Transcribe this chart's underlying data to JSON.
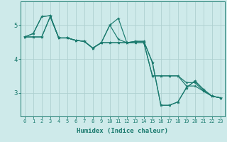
{
  "xlabel": "Humidex (Indice chaleur)",
  "background_color": "#ceeaea",
  "line_color": "#1a7a6e",
  "grid_color": "#aed0d0",
  "x": [
    0,
    1,
    2,
    3,
    4,
    5,
    6,
    7,
    8,
    9,
    10,
    11,
    12,
    13,
    14,
    15,
    16,
    17,
    18,
    19,
    20,
    21,
    22,
    23
  ],
  "series": [
    [
      4.65,
      4.75,
      5.25,
      5.28,
      4.62,
      4.62,
      4.55,
      4.52,
      4.32,
      4.48,
      5.0,
      5.2,
      4.48,
      4.52,
      4.52,
      3.9,
      2.63,
      2.63,
      2.73,
      3.15,
      3.35,
      3.1,
      2.9,
      2.85
    ],
    [
      4.65,
      4.75,
      5.25,
      5.28,
      4.62,
      4.62,
      4.55,
      4.52,
      4.32,
      4.48,
      5.0,
      4.58,
      4.48,
      4.52,
      4.52,
      3.9,
      2.63,
      2.63,
      2.73,
      3.15,
      3.35,
      3.1,
      2.9,
      2.85
    ],
    [
      4.65,
      4.65,
      4.65,
      5.25,
      4.62,
      4.62,
      4.55,
      4.52,
      4.32,
      4.48,
      4.48,
      4.48,
      4.48,
      4.48,
      4.48,
      3.5,
      3.5,
      3.5,
      3.5,
      3.2,
      3.2,
      3.05,
      2.9,
      2.85
    ],
    [
      4.65,
      4.65,
      4.65,
      5.25,
      4.62,
      4.62,
      4.55,
      4.52,
      4.32,
      4.48,
      4.48,
      4.48,
      4.48,
      4.48,
      4.48,
      3.5,
      3.5,
      3.5,
      3.5,
      3.3,
      3.3,
      3.05,
      2.9,
      2.85
    ]
  ],
  "yticks": [
    3,
    4,
    5
  ],
  "ylim": [
    2.3,
    5.7
  ],
  "xlim": [
    -0.5,
    23.5
  ],
  "figsize": [
    3.2,
    2.0
  ],
  "dpi": 100
}
